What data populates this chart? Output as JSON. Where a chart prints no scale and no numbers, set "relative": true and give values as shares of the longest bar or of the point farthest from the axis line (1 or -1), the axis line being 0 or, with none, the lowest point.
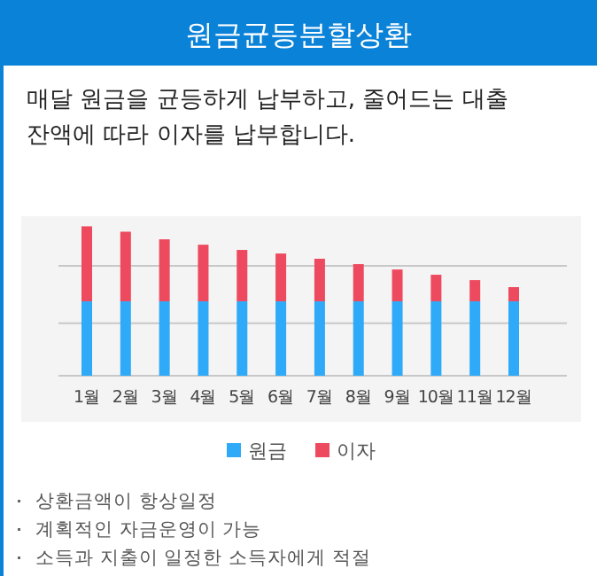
{
  "chart_data": {
    "type": "bar",
    "title": "원금균등분할상환",
    "subtitle": "매달 원금을 균등하게 납부하고, 줄어드는 대출 잔액에 따라 이자를 납부합니다.",
    "categories": [
      "1월",
      "2월",
      "3월",
      "4월",
      "5월",
      "6월",
      "7월",
      "8월",
      "9월",
      "10월",
      "11월",
      "12월"
    ],
    "series": [
      {
        "name": "원금",
        "color": "#2eaaf8",
        "values": [
          0.498,
          0.498,
          0.498,
          0.498,
          0.498,
          0.498,
          0.498,
          0.498,
          0.498,
          0.498,
          0.498,
          0.498
        ]
      },
      {
        "name": "이자",
        "color": "#ee4a5f",
        "values": [
          0.502,
          0.466,
          0.415,
          0.379,
          0.344,
          0.32,
          0.285,
          0.249,
          0.213,
          0.178,
          0.142,
          0.095
        ]
      }
    ],
    "stacked": true,
    "relative": true,
    "legend": "bottom",
    "ref_lines": [
      {
        "axis": "y",
        "value": 0.352,
        "color": "#c8c8c8"
      },
      {
        "axis": "y",
        "value": 0.735,
        "color": "#c8c8c8"
      }
    ],
    "annotations": [
      "상환금액이 항상일정",
      "계획적인 자금운영이 가능",
      "소득과 지출이 일정한 소득자에게 적절"
    ]
  }
}
